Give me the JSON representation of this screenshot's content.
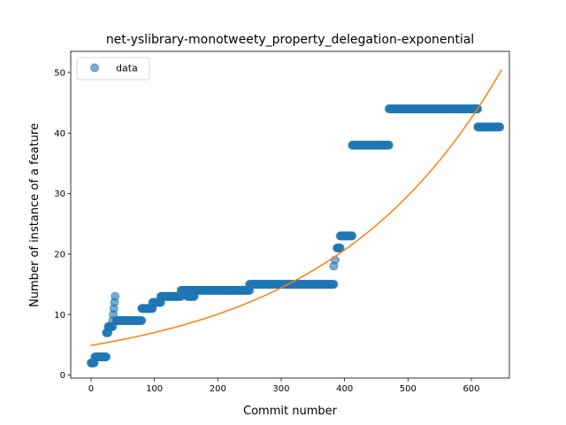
{
  "chart_data": {
    "type": "scatter",
    "title": "net-yslibrary-monotweety_property_delegation-exponential",
    "xlabel": "Commit number",
    "ylabel": "Number of instance of a feature",
    "xlim": [
      -32,
      660
    ],
    "ylim": [
      -0.5,
      53.5
    ],
    "xticks": [
      0,
      100,
      200,
      300,
      400,
      500,
      600
    ],
    "yticks": [
      0,
      10,
      20,
      30,
      40,
      50
    ],
    "grid": false,
    "legend": {
      "placement": "top-left",
      "entries": [
        "data"
      ]
    },
    "colors": {
      "data": "#1f77b4",
      "fit": "#ff7f0e"
    },
    "series": [
      {
        "name": "data",
        "kind": "scatter",
        "segments": [
          [
            0,
            5,
            2
          ],
          [
            6,
            24,
            3
          ],
          [
            24,
            27,
            7
          ],
          [
            27,
            34,
            8
          ],
          [
            34,
            34,
            9
          ],
          [
            35,
            35,
            10
          ],
          [
            36,
            36,
            11
          ],
          [
            37,
            37,
            12
          ],
          [
            38,
            38,
            13
          ],
          [
            40,
            80,
            9
          ],
          [
            80,
            97,
            11
          ],
          [
            97,
            110,
            12
          ],
          [
            110,
            142,
            13
          ],
          [
            142,
            160,
            14
          ],
          [
            152,
            163,
            13
          ],
          [
            163,
            250,
            14
          ],
          [
            250,
            383,
            15
          ],
          [
            383,
            383,
            18
          ],
          [
            385,
            385,
            19
          ],
          [
            388,
            393,
            21
          ],
          [
            393,
            412,
            23
          ],
          [
            412,
            470,
            38
          ],
          [
            470,
            610,
            44
          ],
          [
            610,
            645,
            41
          ]
        ]
      },
      {
        "kind": "line",
        "model": "exponential",
        "a": 4.9,
        "b": 0.0036,
        "x_range": [
          0,
          648
        ]
      }
    ]
  }
}
